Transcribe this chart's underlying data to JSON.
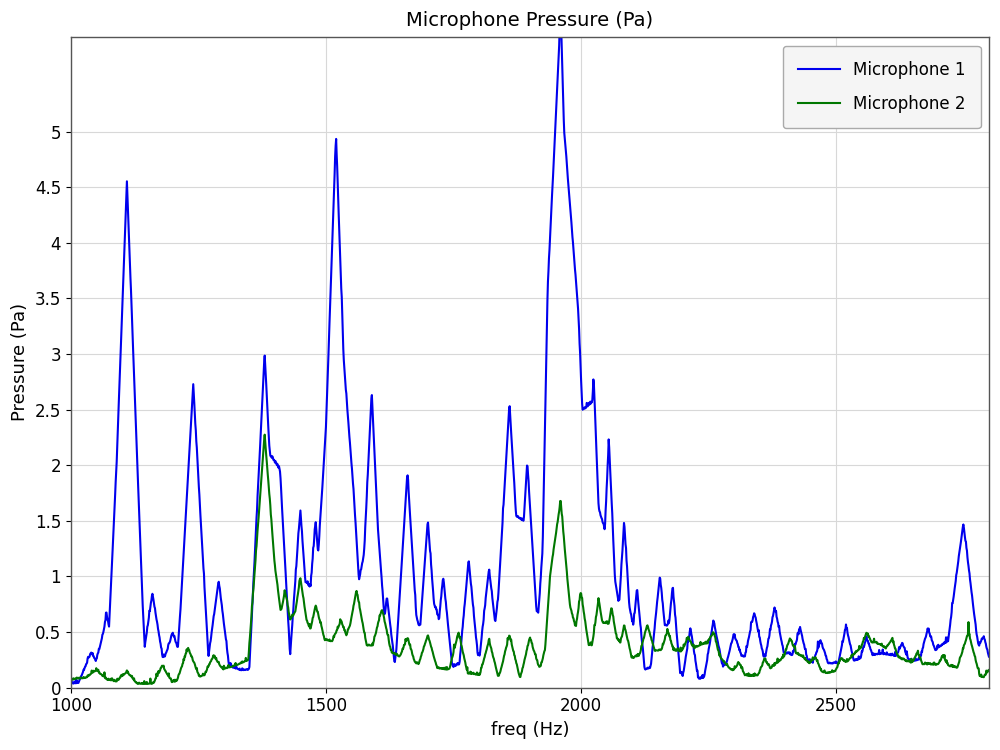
{
  "title": "Microphone Pressure (Pa)",
  "xlabel": "freq (Hz)",
  "ylabel": "Pressure (Pa)",
  "xlim": [
    1000,
    2800
  ],
  "ylim": [
    0,
    5.85
  ],
  "yticks": [
    0,
    0.5,
    1.0,
    1.5,
    2.0,
    2.5,
    3.0,
    3.5,
    4.0,
    4.5,
    5.0
  ],
  "xticks": [
    1000,
    1500,
    2000,
    2500
  ],
  "legend_labels": [
    "Microphone 1",
    "Microphone 2"
  ],
  "color_mic1": "#0000ee",
  "color_mic2": "#007700",
  "background_color": "#ffffff",
  "grid_color": "#d8d8d8",
  "title_fontsize": 14,
  "label_fontsize": 13,
  "tick_fontsize": 12,
  "legend_fontsize": 12,
  "line_width": 1.5
}
